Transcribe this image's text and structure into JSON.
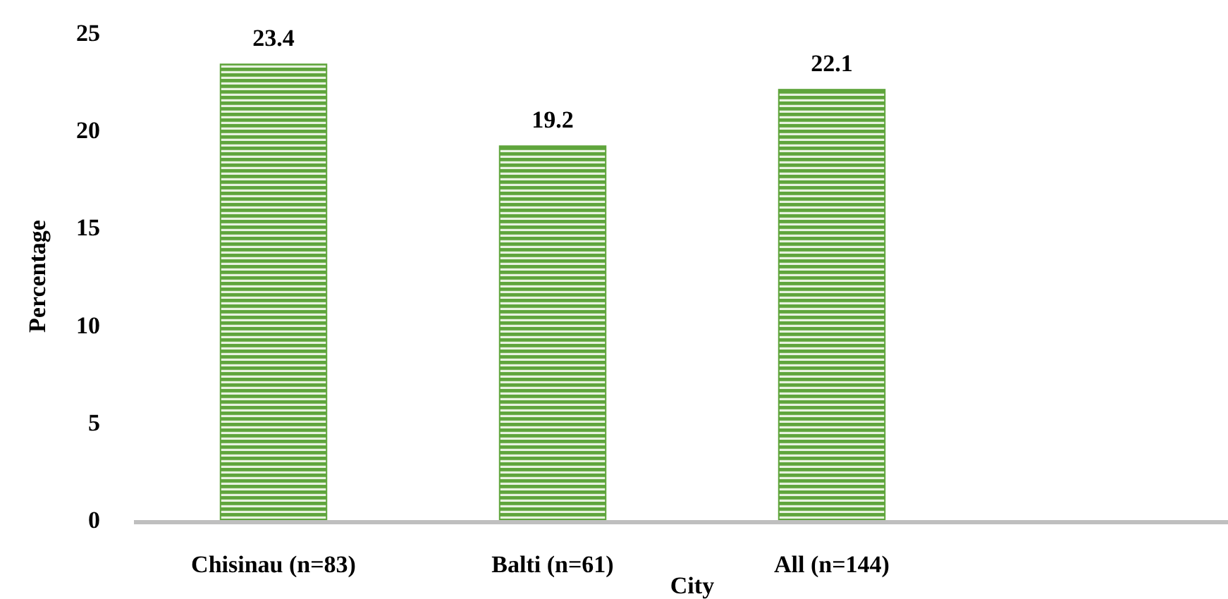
{
  "chart_data": {
    "type": "bar",
    "xlabel": "City",
    "ylabel": "Percentage",
    "categories": [
      "Chisinau (n=83)",
      "Balti (n=61)",
      "All (n=144)"
    ],
    "values": [
      23.4,
      19.2,
      22.1
    ],
    "color": "#5fa53c",
    "ylim": [
      0,
      25
    ],
    "yticks": [
      0,
      5,
      10,
      15,
      20,
      25
    ],
    "data_labels": true,
    "grid": false
  }
}
